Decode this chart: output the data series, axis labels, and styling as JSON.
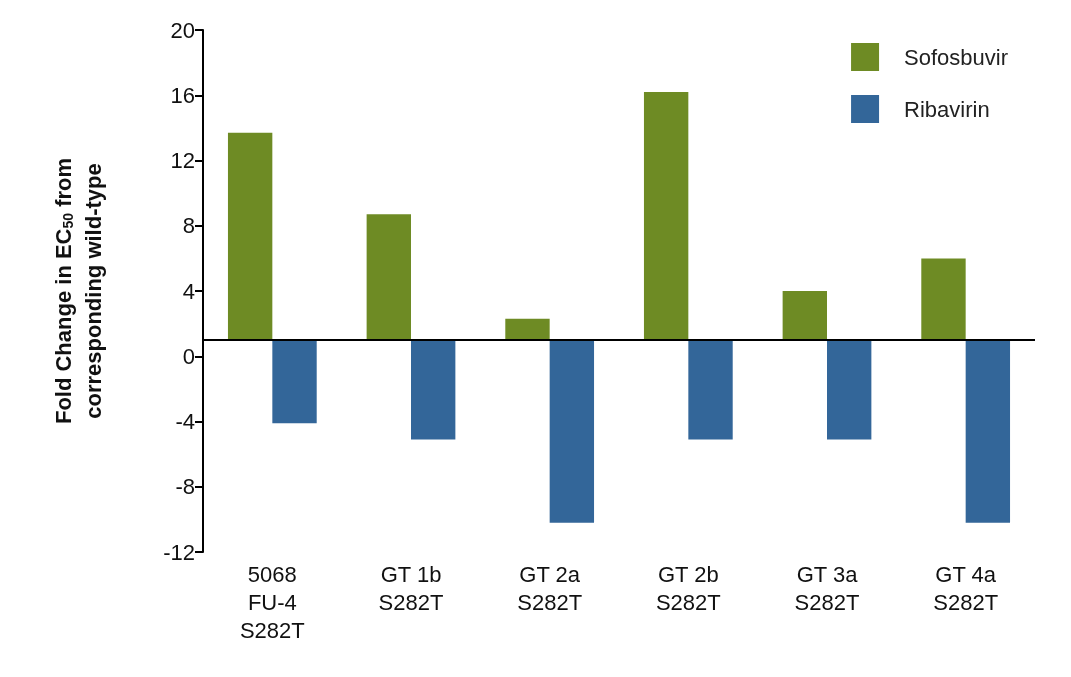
{
  "chart_data": {
    "type": "bar",
    "ylabel": "Fold Change in EC$_{50}$ from\ncorresponding wild-type",
    "categories": [
      "5068\nFU-4\nS282T",
      "GT 1b\nS282T",
      "GT 2a\nS282T",
      "GT 2b\nS282T",
      "GT 3a\nS282T",
      "GT 4a\nS282T"
    ],
    "series": [
      {
        "name": "Sofosbuvir",
        "color": "#6e8b24",
        "base": [
          1,
          1,
          1,
          1,
          1,
          1
        ],
        "values": [
          12.7,
          7.7,
          1.3,
          15.2,
          3.0,
          5.0
        ]
      },
      {
        "name": "Ribavirin",
        "color": "#336699",
        "base": [
          1,
          1,
          1,
          1,
          1,
          1
        ],
        "values": [
          -5.1,
          -6.1,
          -11.2,
          -6.1,
          -6.1,
          -11.2
        ]
      }
    ],
    "ylim": [
      -12,
      20
    ],
    "yticks": [
      -12,
      -8,
      -4,
      0,
      4,
      8,
      12,
      16,
      20
    ],
    "ref_lines": [
      {
        "axis": "y",
        "value": 1,
        "color": "#000000"
      }
    ],
    "grid": false,
    "legend": "top right"
  }
}
